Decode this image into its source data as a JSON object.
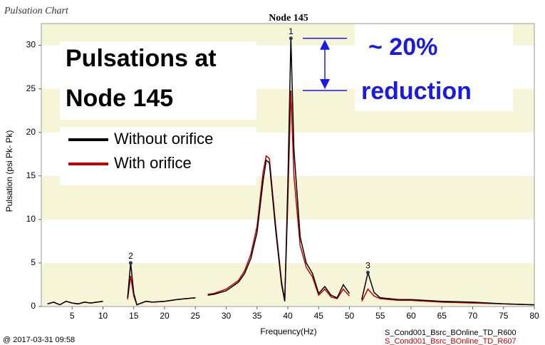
{
  "chart_data": {
    "type": "line",
    "header": "Pulsation Chart",
    "title": "Node 145",
    "x_label": "Frequency(Hz)",
    "y_label": "Pulsation (psi  Pk- Pk)",
    "timestamp": "@ 2017-03-31 09:58",
    "files": [
      "S_Cond001_Bsrc_BOnline_TD_R600",
      "S_Cond001_Bsrc_BOnline_TD_R607"
    ],
    "annotation_left": [
      "Pulsations at",
      "Node 145"
    ],
    "annotation_right": [
      "~ 20%",
      "reduction"
    ],
    "x": [
      1,
      2,
      3,
      4,
      5,
      6,
      7,
      8,
      9,
      10,
      11,
      13,
      14,
      14.5,
      15,
      15.5,
      17,
      18,
      20,
      22,
      25,
      26,
      27,
      28,
      30,
      32,
      33,
      34,
      35,
      36,
      36.5,
      37,
      38,
      39,
      39.5,
      40,
      40.5,
      41,
      42,
      43,
      44,
      45,
      46,
      47,
      48,
      49,
      50,
      51,
      52,
      53,
      54,
      55,
      58,
      60,
      65,
      70,
      75,
      80
    ],
    "series": [
      {
        "name": "Without orifice",
        "color": "#000000",
        "values": [
          0.3,
          0.5,
          0.2,
          0.6,
          0.4,
          0.3,
          0.5,
          0.4,
          0.5,
          0.6,
          null,
          null,
          1.0,
          5.0,
          1.5,
          0.2,
          0.6,
          0.5,
          0.6,
          0.8,
          1.0,
          null,
          1.3,
          1.4,
          1.8,
          2.8,
          3.8,
          5.5,
          8.5,
          14.5,
          16.8,
          16.5,
          9,
          2.5,
          0.6,
          14,
          30.8,
          18,
          8,
          5,
          3.8,
          1.5,
          2.3,
          1.3,
          1.0,
          2.5,
          1.5,
          null,
          0.8,
          3.9,
          1.6,
          1.0,
          0.8,
          0.8,
          0.6,
          0.5,
          0.3,
          0.2
        ]
      },
      {
        "name": "With orifice",
        "color": "#c00000",
        "values": [
          0.3,
          0.5,
          0.2,
          0.6,
          0.4,
          0.3,
          0.5,
          0.4,
          0.5,
          0.6,
          null,
          null,
          0.8,
          3.5,
          1.2,
          0.2,
          0.6,
          0.5,
          0.6,
          0.8,
          1.0,
          null,
          1.4,
          1.5,
          2.0,
          3.0,
          4.1,
          6.0,
          9.2,
          15.5,
          17.3,
          17.0,
          9.5,
          2.8,
          0.7,
          12,
          24.8,
          15,
          7,
          4.5,
          3.4,
          1.3,
          2.0,
          1.1,
          0.9,
          2.0,
          1.2,
          null,
          0.6,
          2.0,
          1.2,
          0.9,
          0.7,
          0.7,
          0.5,
          0.4,
          0.3,
          0.2
        ]
      }
    ],
    "peaks": [
      {
        "label": "1",
        "x": 40.5,
        "y": 30.8
      },
      {
        "label": "2",
        "x": 14.5,
        "y": 5.0
      },
      {
        "label": "3",
        "x": 53,
        "y": 3.9
      }
    ],
    "xlim": [
      0,
      80
    ],
    "xticks": [
      5,
      10,
      15,
      20,
      25,
      30,
      35,
      40,
      45,
      50,
      55,
      60,
      65,
      70,
      75,
      80
    ],
    "ylim": [
      0,
      32.5
    ],
    "yticks": [
      0,
      5,
      10,
      15,
      20,
      25,
      30
    ],
    "bands": true
  }
}
